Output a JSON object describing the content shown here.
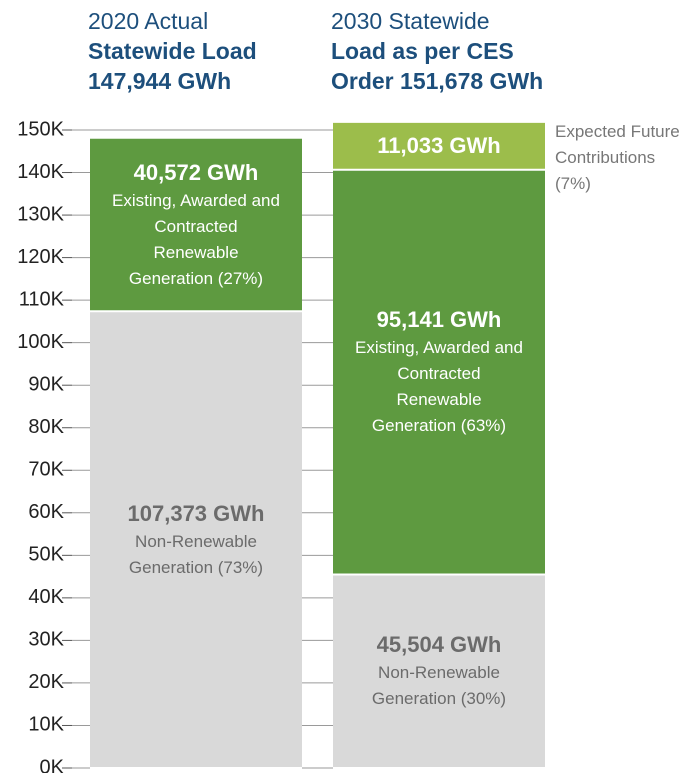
{
  "chart_data": {
    "type": "stacked_bar",
    "headers": [
      {
        "subtitle": "2020 Actual",
        "title_lines": [
          "Statewide Load",
          "147,944 GWh"
        ]
      },
      {
        "subtitle": "2030 Statewide",
        "title_lines": [
          "Load as per CES",
          "Order 151,678 GWh"
        ]
      }
    ],
    "series": [
      {
        "color": "#d9d9d9",
        "text_color": "#6b6b6b",
        "values": [
          107373,
          45504
        ],
        "value_labels": [
          "107,373 GWh",
          "45,504 GWh"
        ],
        "labels": [
          "Non-Renewable Generation (73%)",
          "Non-Renewable Generation (30%)"
        ]
      },
      {
        "color": "#5e9a40",
        "text_color": "#ffffff",
        "values": [
          40572,
          95141
        ],
        "value_labels": [
          "40,572 GWh",
          "95,141 GWh"
        ],
        "labels": [
          "Existing, Awarded and Contracted Renewable Generation (27%)",
          "Existing, Awarded and Contracted Renewable Generation (63%)"
        ]
      },
      {
        "color": "#9cbd4b",
        "text_color": "#ffffff",
        "values": [
          null,
          11033
        ],
        "value_labels": [
          null,
          "11,033 GWh"
        ],
        "labels": [
          null,
          "Expected Future Contributions (7%)"
        ],
        "label_outside": true
      }
    ],
    "ylim": [
      0,
      150000
    ],
    "yticks": [
      {
        "value": 0,
        "label": "0K"
      },
      {
        "value": 10000,
        "label": "10K"
      },
      {
        "value": 20000,
        "label": "20K"
      },
      {
        "value": 30000,
        "label": "30K"
      },
      {
        "value": 40000,
        "label": "40K"
      },
      {
        "value": 50000,
        "label": "50K"
      },
      {
        "value": 60000,
        "label": "60K"
      },
      {
        "value": 70000,
        "label": "70K"
      },
      {
        "value": 80000,
        "label": "80K"
      },
      {
        "value": 90000,
        "label": "90K"
      },
      {
        "value": 100000,
        "label": "100K"
      },
      {
        "value": 110000,
        "label": "110K"
      },
      {
        "value": 120000,
        "label": "120K"
      },
      {
        "value": 130000,
        "label": "130K"
      },
      {
        "value": 140000,
        "label": "140K"
      },
      {
        "value": 150000,
        "label": "150K"
      }
    ],
    "grid": true
  }
}
